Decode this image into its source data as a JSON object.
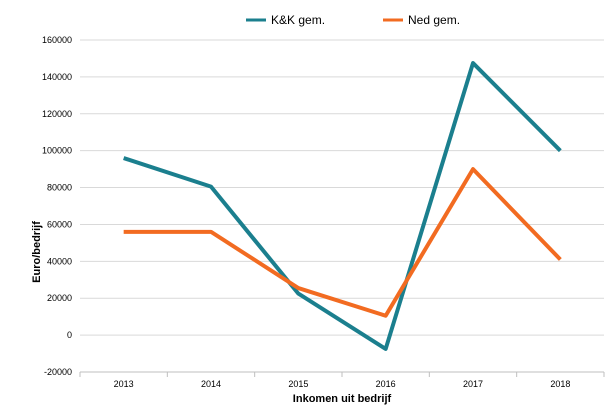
{
  "chart_data": {
    "type": "line",
    "title": "",
    "xlabel": "Inkomen uit bedrijf",
    "ylabel": "Euro/bedrijf",
    "categories": [
      "2013",
      "2014",
      "2015",
      "2016",
      "2017",
      "2018"
    ],
    "ylim": [
      -20000,
      160000
    ],
    "yticks": [
      "160000",
      "140000",
      "120000",
      "100000",
      "80000",
      "60000",
      "40000",
      "20000",
      "0",
      "-20000"
    ],
    "ytick_values": [
      160000,
      140000,
      120000,
      100000,
      80000,
      60000,
      40000,
      20000,
      0,
      -20000
    ],
    "grid": true,
    "legend_position": "top",
    "series": [
      {
        "name": "K&K gem.",
        "color": "#1b7f8e",
        "values": [
          96000,
          80500,
          22500,
          -7500,
          147500,
          100000
        ]
      },
      {
        "name": "Ned gem.",
        "color": "#f26b21",
        "values": [
          56000,
          56000,
          25500,
          10500,
          90000,
          41000
        ]
      }
    ]
  }
}
